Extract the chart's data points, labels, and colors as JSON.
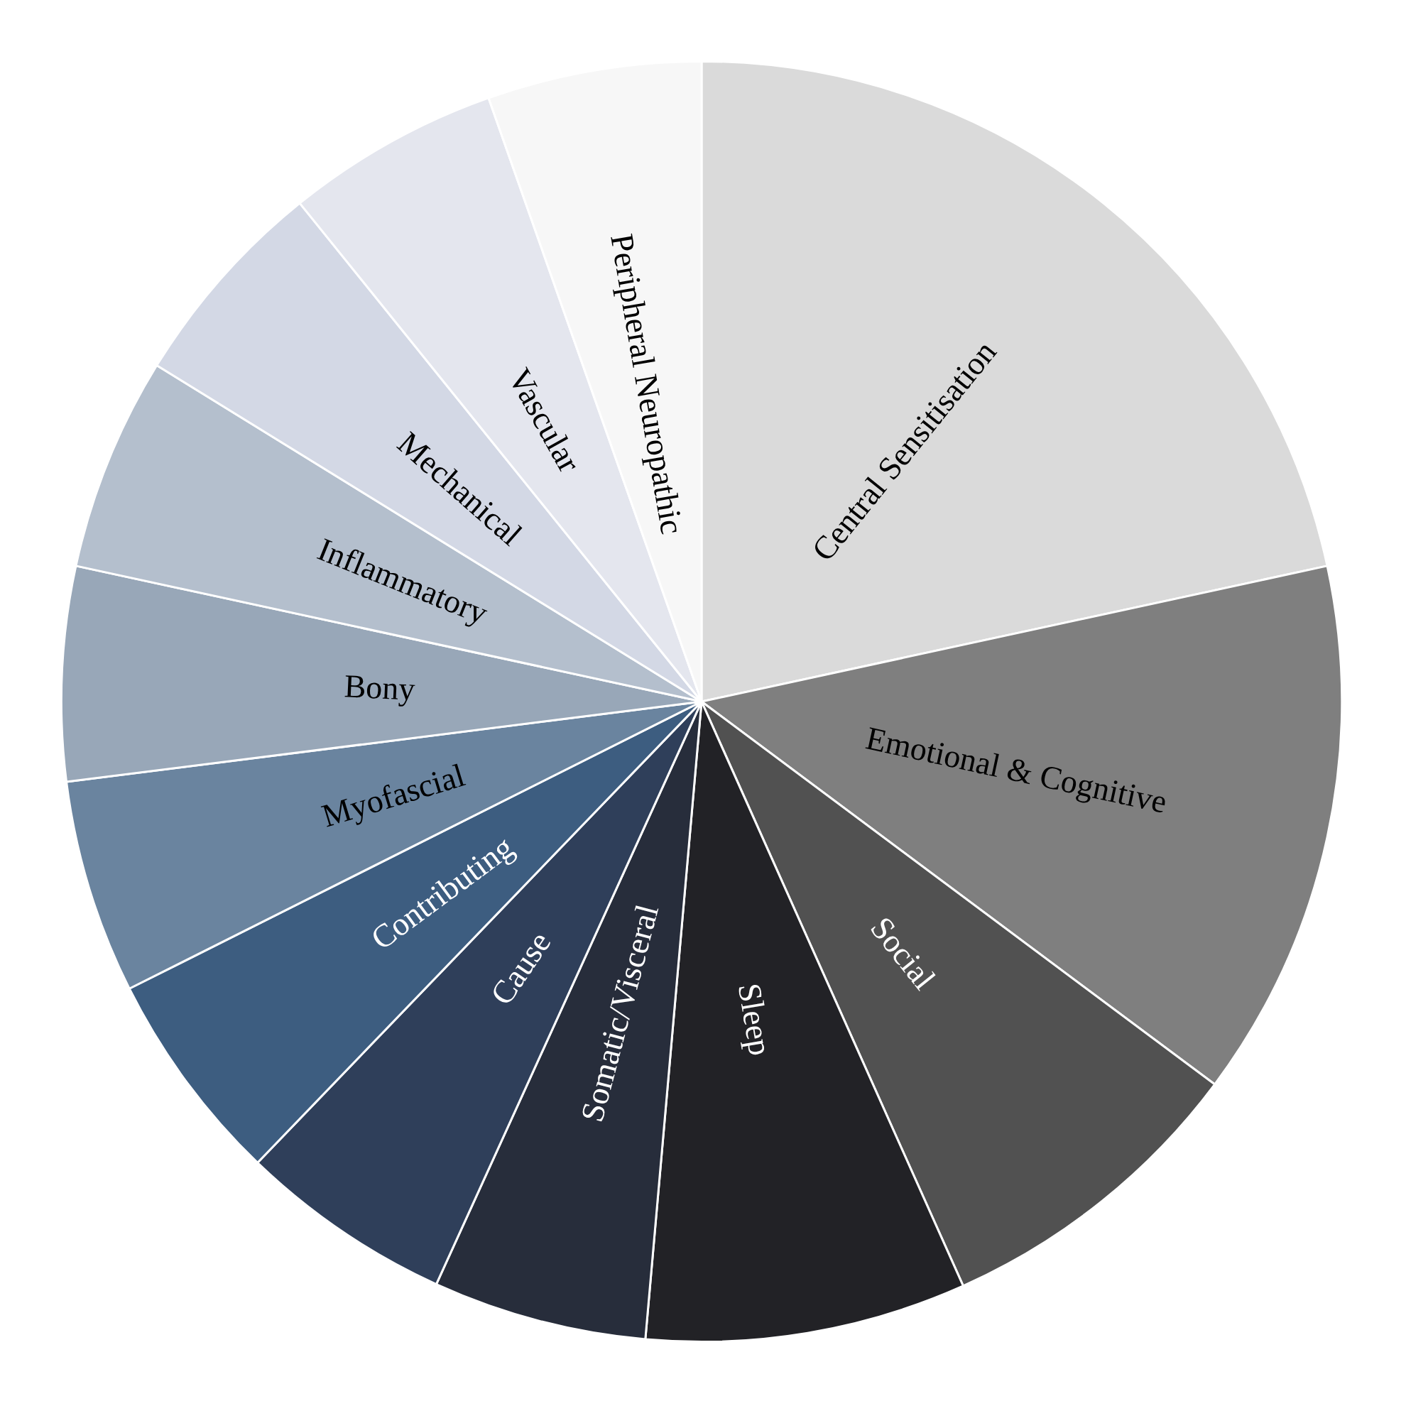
{
  "chart_data": {
    "type": "pie",
    "categories": [
      "Central Sensitisation",
      "Emotional & Cognitive",
      "Social",
      "Sleep",
      "Somatic/Visceral",
      "Cause",
      "Contributing",
      "Myofascial",
      "Bony",
      "Inflammatory",
      "Mechanical",
      "Vascular",
      "Peripheral Neuropathic"
    ],
    "values": [
      21.6,
      13.6,
      8.1,
      8.1,
      5.4,
      5.4,
      5.4,
      5.4,
      5.4,
      5.4,
      5.4,
      5.4,
      5.4
    ],
    "colors": [
      "#dadada",
      "#7f7f7f",
      "#515151",
      "#222226",
      "#272d3b",
      "#2f3f5a",
      "#3d5d80",
      "#6a849f",
      "#98a7b8",
      "#b4bfcd",
      "#d3d8e5",
      "#e4e6ee",
      "#f7f7f7"
    ],
    "legend": false
  }
}
